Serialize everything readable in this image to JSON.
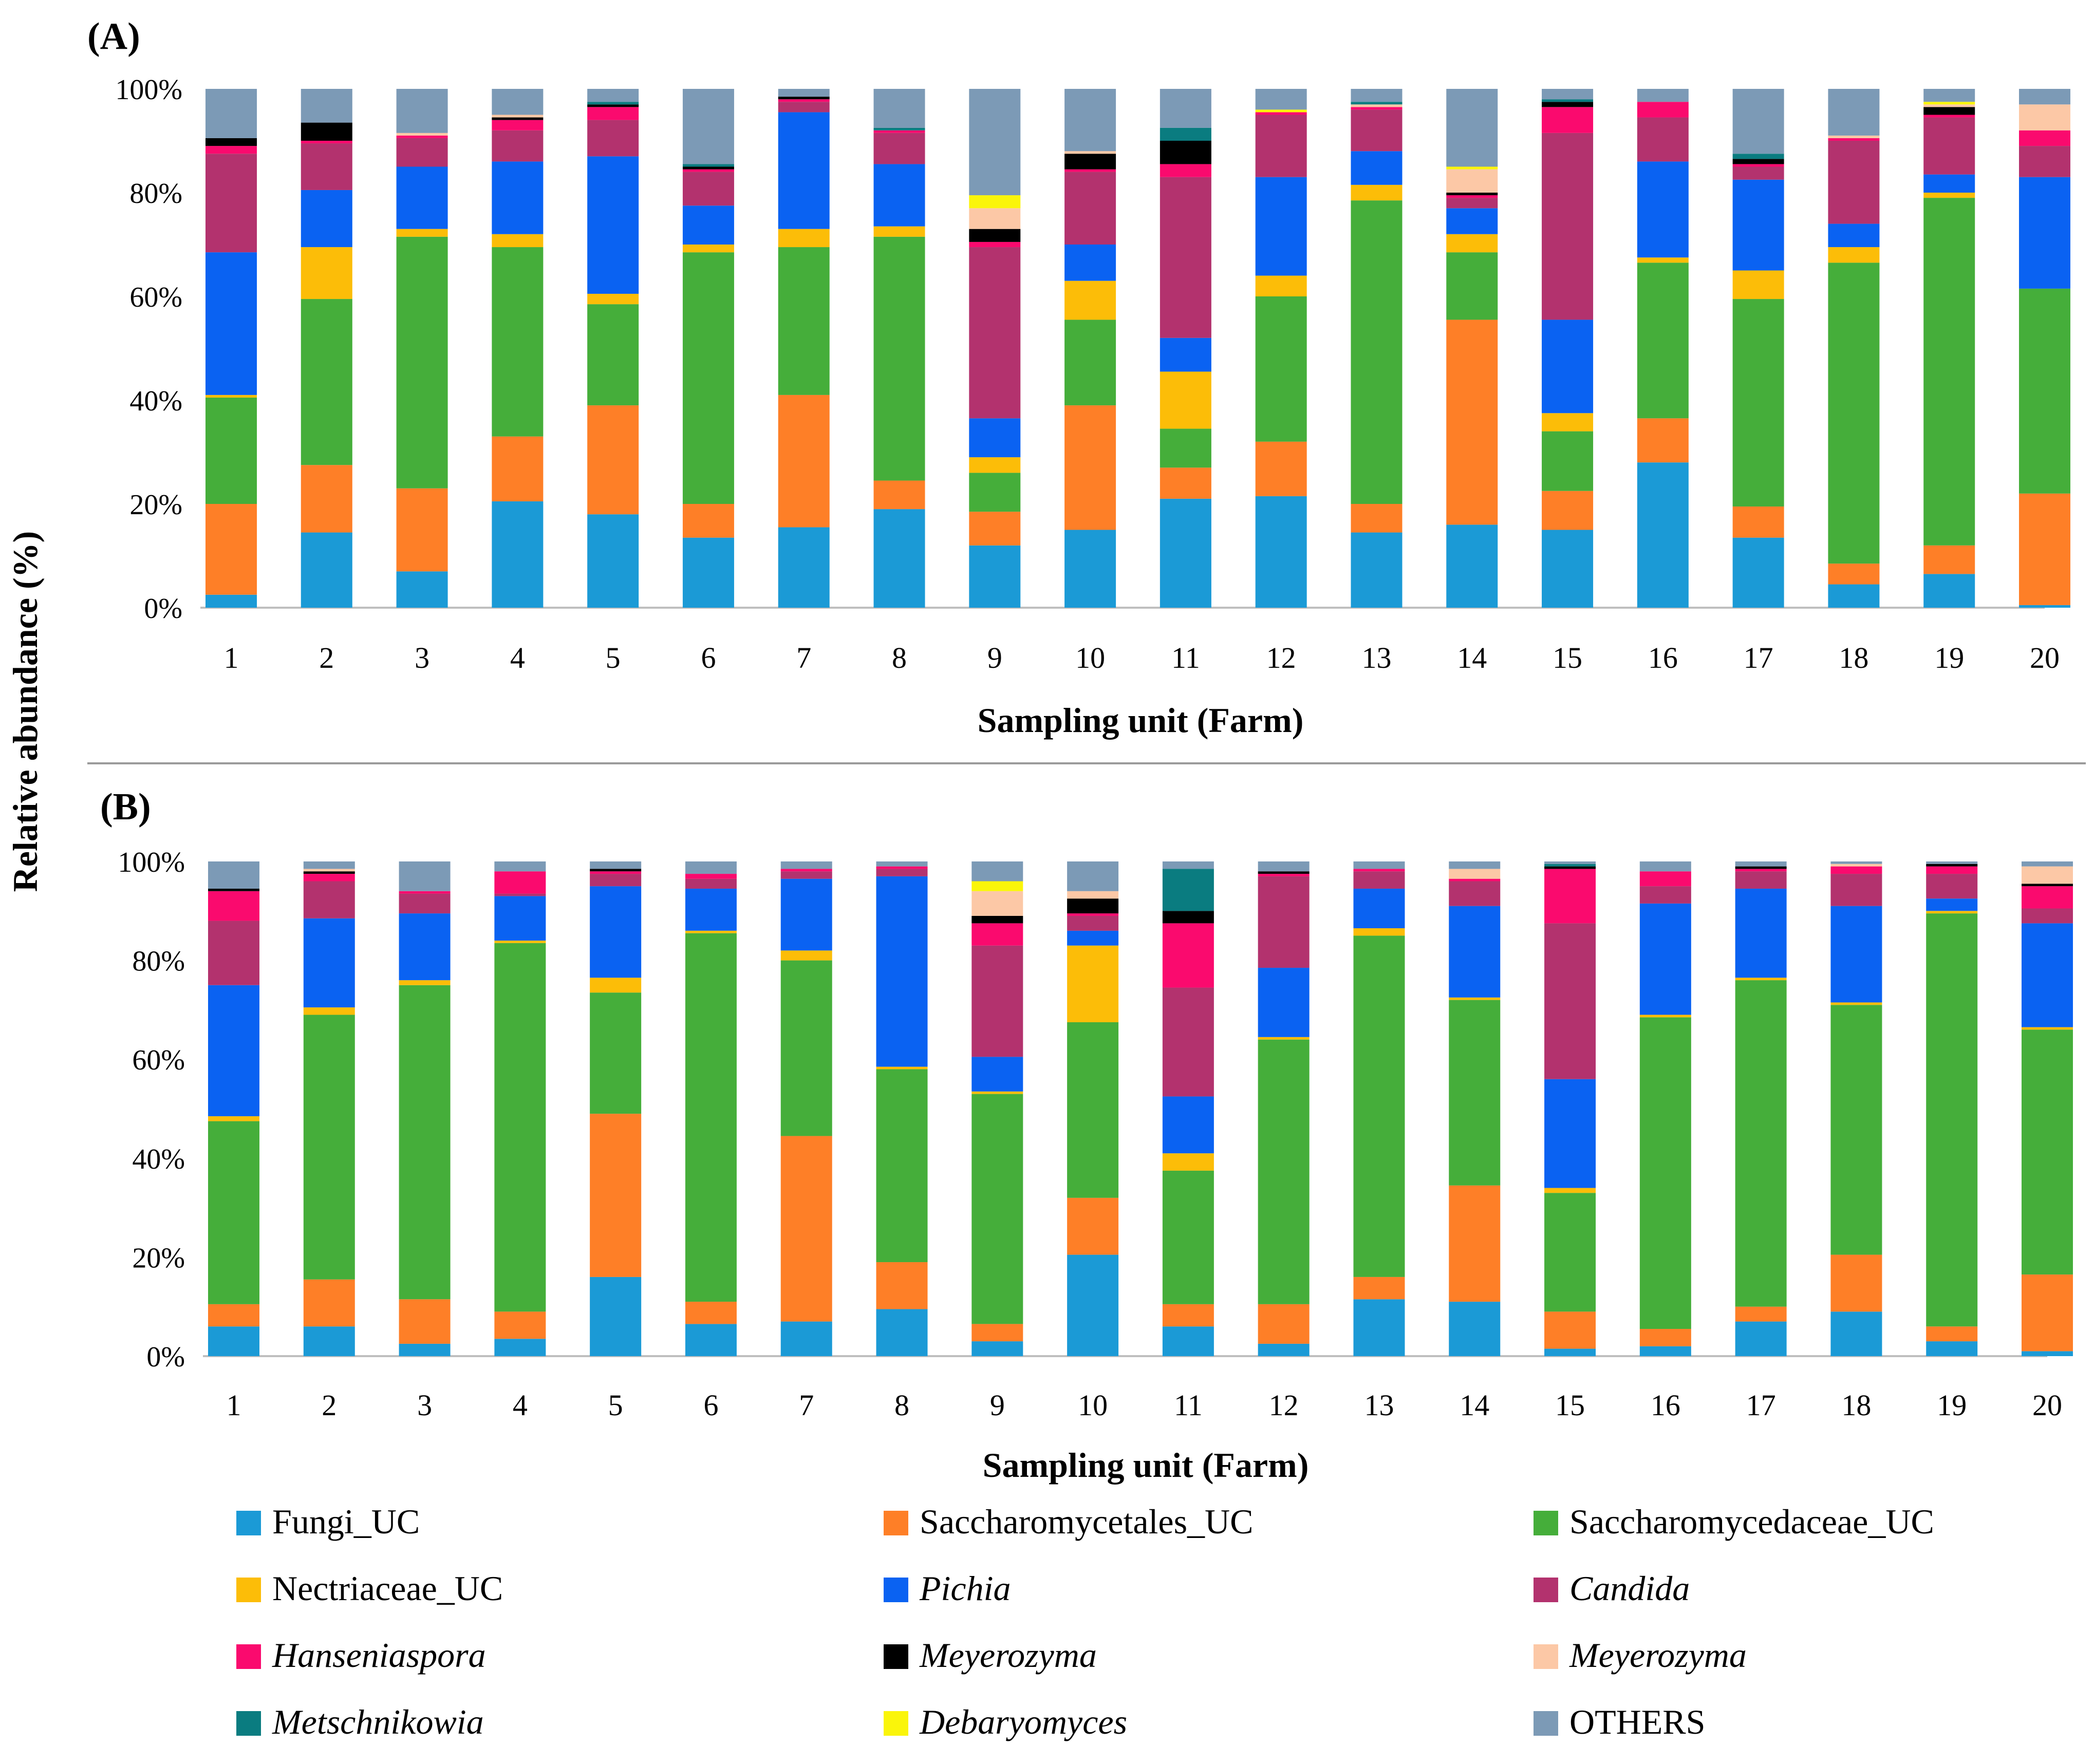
{
  "figure": {
    "ylabel": "Relative abundance (%)",
    "separator": true
  },
  "legend": [
    {
      "name": "Fungi_UC",
      "color": "#1b9ad6",
      "italic": false
    },
    {
      "name": "Saccharomycetales_UC",
      "color": "#fe7f27",
      "italic": false
    },
    {
      "name": "Saccharomycedaceae_UC",
      "color": "#45ae3a",
      "italic": false
    },
    {
      "name": "Nectriaceae_UC",
      "color": "#fcbd08",
      "italic": false
    },
    {
      "name": "Pichia",
      "color": "#0a62f2",
      "italic": true
    },
    {
      "name": "Candida",
      "color": "#b3326e",
      "italic": true
    },
    {
      "name": "Hanseniaspora",
      "color": "#fa0a6e",
      "italic": true
    },
    {
      "name": "Meyerozyma",
      "color": "#000000",
      "italic": true
    },
    {
      "name": "Meyerozyma",
      "color": "#fcc8a6",
      "italic": true
    },
    {
      "name": "Metschnikowia",
      "color": "#0a7c80",
      "italic": true
    },
    {
      "name": "Debaryomyces",
      "color": "#faf50a",
      "italic": true
    },
    {
      "name": "OTHERS",
      "color": "#7c9ab6",
      "italic": false
    }
  ],
  "chart_data": [
    {
      "type": "bar",
      "stacked": true,
      "panel_label": "(A)",
      "title": "",
      "xlabel": "Sampling unit (Farm)",
      "ylabel": "Relative abundance (%)",
      "ylim": [
        0,
        100
      ],
      "yticks": [
        "0%",
        "20%",
        "40%",
        "60%",
        "80%",
        "100%"
      ],
      "categories": [
        "1",
        "2",
        "3",
        "4",
        "5",
        "6",
        "7",
        "8",
        "9",
        "10",
        "11",
        "12",
        "13",
        "14",
        "15",
        "16",
        "17",
        "18",
        "19",
        "20"
      ],
      "series_names": [
        "Fungi_UC",
        "Saccharomycetales_UC",
        "Saccharomycedaceae_UC",
        "Nectriaceae_UC",
        "Pichia",
        "Candida",
        "Hanseniaspora",
        "Meyerozyma",
        "Meyerozyma",
        "Metschnikowia",
        "Debaryomyces",
        "OTHERS"
      ],
      "stacks": [
        [
          2.5,
          17.5,
          20.5,
          0.5,
          27.5,
          19,
          1.5,
          1.5,
          0,
          0,
          0,
          9.5
        ],
        [
          14.5,
          13,
          32,
          10,
          11,
          9,
          0.5,
          3.5,
          0,
          0,
          0,
          6.5
        ],
        [
          7,
          16,
          48.5,
          1.5,
          12,
          5.5,
          0.5,
          0,
          0.5,
          0,
          0,
          8.5
        ],
        [
          20.5,
          12.5,
          36.5,
          2.5,
          14,
          6,
          2,
          0.5,
          0.5,
          0,
          0,
          5
        ],
        [
          18,
          21,
          19.5,
          2,
          26.5,
          7,
          2.5,
          0.5,
          0,
          0.5,
          0,
          2.5
        ],
        [
          13.5,
          6.5,
          48.5,
          1.5,
          7.5,
          6.5,
          0.5,
          0.5,
          0,
          0.5,
          0,
          14.5
        ],
        [
          15.5,
          25.5,
          28.5,
          3.5,
          22.5,
          2,
          0.5,
          0.5,
          0,
          0,
          0,
          1.5
        ],
        [
          19,
          5.5,
          47,
          2,
          12,
          6,
          0.5,
          0,
          0,
          0.5,
          0,
          7.5
        ],
        [
          12,
          6.5,
          7.5,
          3,
          7.5,
          33,
          1,
          2.5,
          4,
          0,
          2.5,
          20.5
        ],
        [
          15,
          24,
          16.5,
          7.5,
          7,
          14,
          0.5,
          3,
          0.5,
          0,
          0,
          12
        ],
        [
          21,
          6,
          7.5,
          11,
          6.5,
          31,
          2.5,
          4.5,
          0,
          2.5,
          0,
          7.5
        ],
        [
          21.5,
          10.5,
          28,
          4,
          19,
          12,
          0.5,
          0,
          0,
          0,
          0.5,
          4
        ],
        [
          14.5,
          5.5,
          58.5,
          3,
          6.5,
          8,
          0.5,
          0,
          0.5,
          0.5,
          0,
          2.5
        ],
        [
          16,
          39.5,
          13,
          3.5,
          5,
          2,
          0.5,
          0.5,
          4.5,
          0,
          0.5,
          15
        ],
        [
          15,
          7.5,
          11.5,
          3.5,
          18,
          36,
          5,
          1,
          0,
          0.5,
          0,
          2
        ],
        [
          28,
          8.5,
          30,
          1,
          18.5,
          8.5,
          3,
          0,
          0,
          0,
          0,
          2.5
        ],
        [
          13.5,
          6,
          40,
          5.5,
          17.5,
          2.5,
          0.5,
          1,
          0,
          1,
          0,
          12.5
        ],
        [
          4.5,
          4,
          58,
          3,
          4.5,
          16,
          0.5,
          0,
          0.5,
          0,
          0,
          9
        ],
        [
          6.5,
          5.5,
          67,
          1,
          3.5,
          11,
          0.5,
          1.5,
          0.5,
          0,
          0.5,
          2.5
        ],
        [
          0.5,
          21.5,
          39.5,
          0,
          21.5,
          6,
          3,
          0,
          5,
          0,
          0,
          3
        ]
      ]
    },
    {
      "type": "bar",
      "stacked": true,
      "panel_label": "(B)",
      "title": "",
      "xlabel": "Sampling unit (Farm)",
      "ylabel": "Relative abundance (%)",
      "ylim": [
        0,
        100
      ],
      "yticks": [
        "0%",
        "20%",
        "40%",
        "60%",
        "80%",
        "100%"
      ],
      "categories": [
        "1",
        "2",
        "3",
        "4",
        "5",
        "6",
        "7",
        "8",
        "9",
        "10",
        "11",
        "12",
        "13",
        "14",
        "15",
        "16",
        "17",
        "18",
        "19",
        "20"
      ],
      "series_names": [
        "Fungi_UC",
        "Saccharomycetales_UC",
        "Saccharomycedaceae_UC",
        "Nectriaceae_UC",
        "Pichia",
        "Candida",
        "Hanseniaspora",
        "Meyerozyma",
        "Meyerozyma",
        "Metschnikowia",
        "Debaryomyces",
        "OTHERS"
      ],
      "stacks": [
        [
          6,
          4.5,
          37,
          1,
          26.5,
          13,
          6,
          0.5,
          0,
          0,
          0,
          5.5
        ],
        [
          6,
          9.5,
          53.5,
          1.5,
          18,
          7.5,
          1.5,
          0.5,
          0.5,
          0,
          0,
          1.5
        ],
        [
          2.5,
          9,
          63.5,
          1,
          13.5,
          4,
          0.5,
          0,
          0,
          0,
          0,
          6
        ],
        [
          3.5,
          5.5,
          74.5,
          0.5,
          9,
          0.5,
          4.5,
          0,
          0,
          0,
          0,
          2
        ],
        [
          16,
          33,
          24.5,
          3,
          18.5,
          2.5,
          0.5,
          0.5,
          0,
          0,
          0,
          1.5
        ],
        [
          6.5,
          4.5,
          74.5,
          0.5,
          8.5,
          2,
          1,
          0,
          0,
          0,
          0,
          2.5
        ],
        [
          7,
          37.5,
          35.5,
          2,
          14.5,
          1.5,
          0.5,
          0,
          0,
          0,
          0,
          1.5
        ],
        [
          9.5,
          9.5,
          39,
          0.5,
          38.5,
          1.5,
          0.5,
          0,
          0,
          0,
          0,
          1
        ],
        [
          3,
          3.5,
          46.5,
          0.5,
          7,
          22.5,
          4.5,
          1.5,
          5,
          0,
          2,
          4
        ],
        [
          20.5,
          11.5,
          35.5,
          15.5,
          3,
          3,
          0.5,
          3,
          1.5,
          0,
          0,
          6
        ],
        [
          6,
          4.5,
          27,
          3.5,
          11.5,
          22,
          13,
          2.5,
          0,
          8.5,
          0,
          1.5
        ],
        [
          2.5,
          8,
          53.5,
          0.5,
          14,
          18.5,
          0.5,
          0.5,
          0,
          0,
          0,
          2
        ],
        [
          11.5,
          4.5,
          69,
          1.5,
          8,
          3.5,
          0.5,
          0,
          0,
          0,
          0,
          1.5
        ],
        [
          11,
          23.5,
          37.5,
          0.5,
          18.5,
          5,
          0.5,
          0,
          2,
          0,
          0,
          1.5
        ],
        [
          1.5,
          7.5,
          24,
          1,
          22,
          31.5,
          11,
          0.5,
          0,
          0.5,
          0,
          0.5
        ],
        [
          2,
          3.5,
          63,
          0.5,
          22.5,
          3.5,
          3,
          0,
          0,
          0,
          0,
          2
        ],
        [
          7,
          3,
          66,
          0.5,
          18,
          3.5,
          0.5,
          0.5,
          0,
          0,
          0,
          1
        ],
        [
          9,
          11.5,
          50.5,
          0.5,
          19.5,
          6.5,
          1.5,
          0,
          0.5,
          0,
          0,
          0.5
        ],
        [
          3,
          3,
          83.5,
          0.5,
          2.5,
          5,
          1.5,
          0.5,
          0,
          0,
          0,
          0.5
        ],
        [
          1,
          15.5,
          49.5,
          0.5,
          21,
          3,
          4.5,
          0.5,
          3.5,
          0,
          0,
          1
        ]
      ]
    }
  ]
}
